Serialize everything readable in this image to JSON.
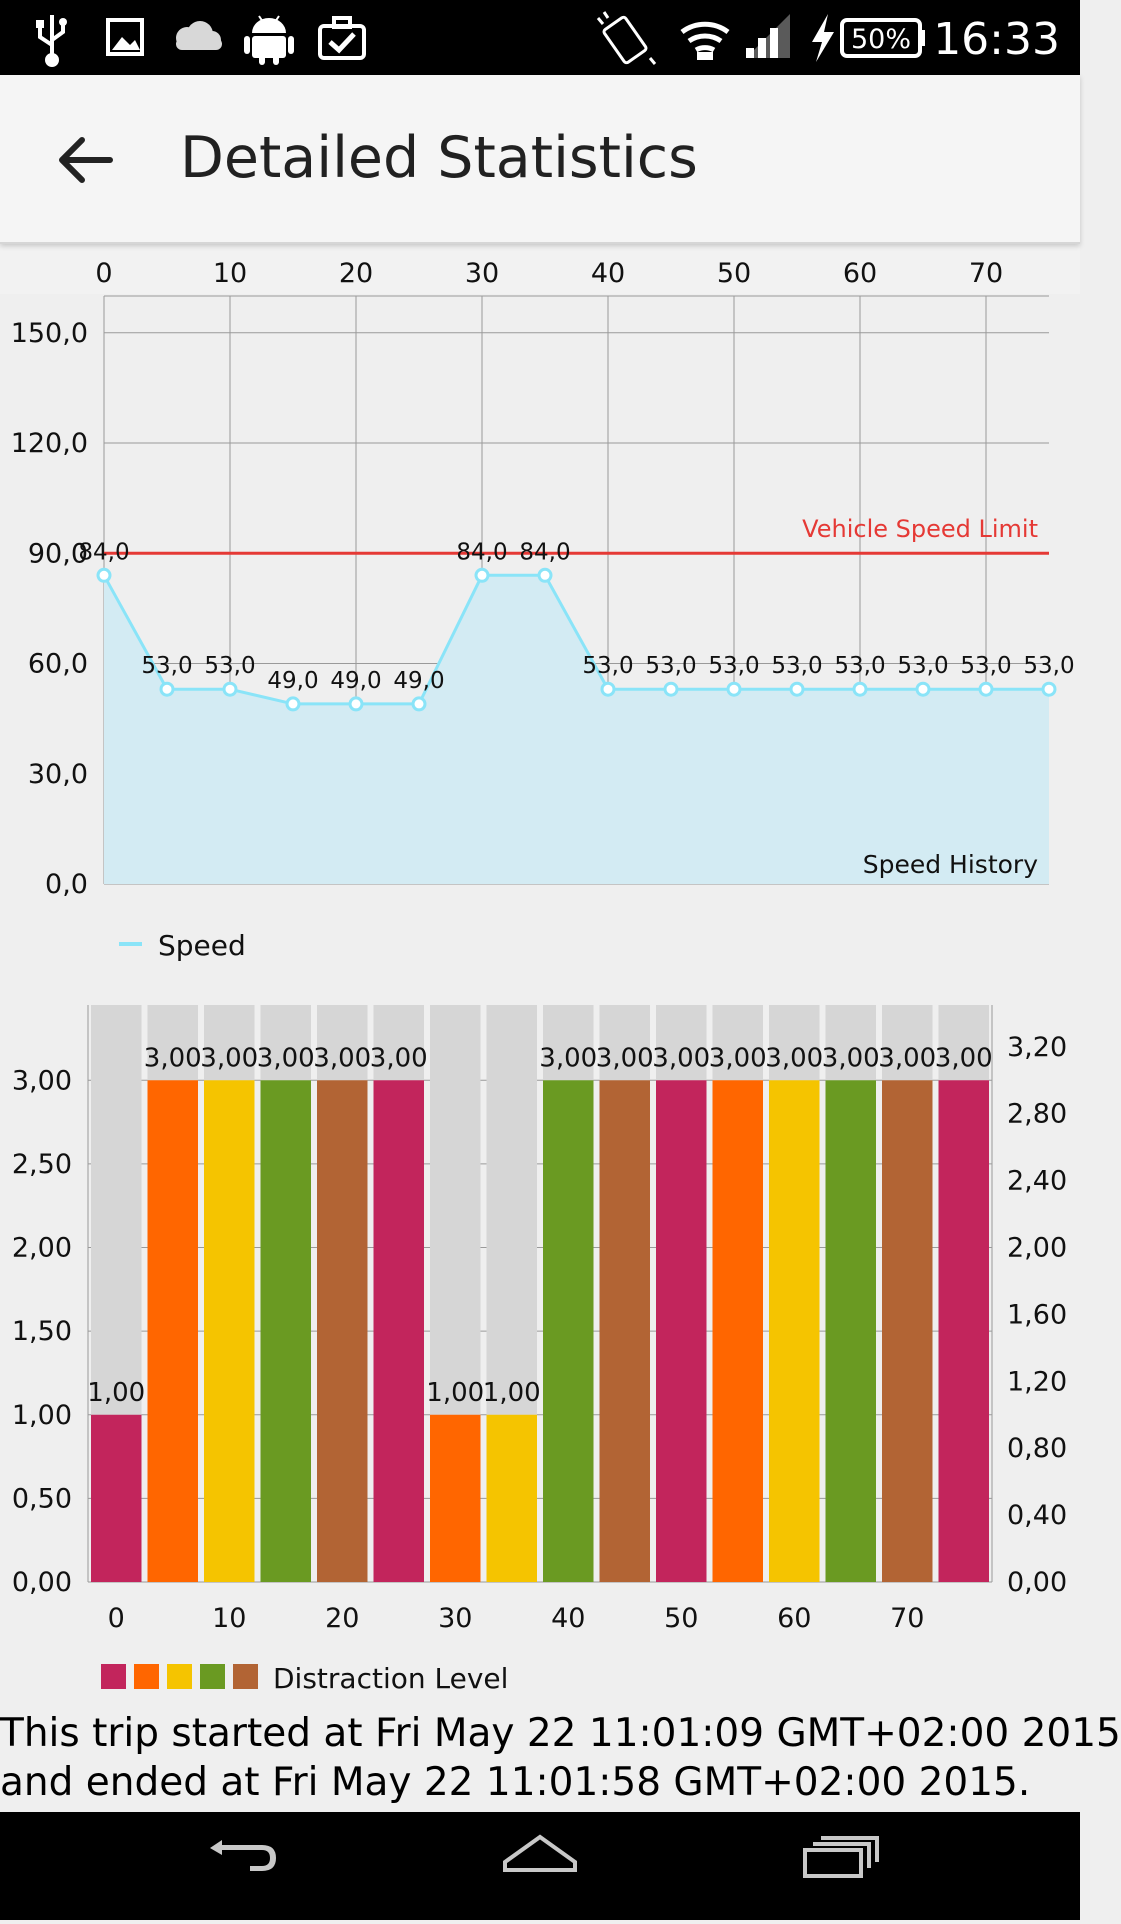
{
  "status_bar": {
    "battery": "50%",
    "time": "16:33",
    "icons": [
      "usb-icon",
      "image-icon",
      "cloud-icon",
      "android-icon",
      "briefcase-check-icon",
      "vibrate-icon",
      "wifi-icon",
      "signal-icon",
      "charging-icon",
      "battery-icon"
    ]
  },
  "app_bar": {
    "title": "Detailed Statistics",
    "back_icon": "arrow-back-icon"
  },
  "chart_data": [
    {
      "type": "line",
      "title": "Speed History",
      "x": [
        0,
        5,
        10,
        15,
        20,
        25,
        30,
        35,
        40,
        45,
        50,
        55,
        60,
        65,
        70,
        75
      ],
      "series": [
        {
          "name": "Speed",
          "values": [
            84,
            53,
            53,
            49,
            49,
            49,
            84,
            84,
            53,
            53,
            53,
            53,
            53,
            53,
            53,
            53
          ],
          "color": "#8ae4f8",
          "fill": "#d3ebf3"
        }
      ],
      "data_labels": [
        "84,0",
        "53,0",
        "53,0",
        "49,0",
        "49,0",
        "49,0",
        "84,0",
        "84,0",
        "53,0",
        "53,0",
        "53,0",
        "53,0",
        "53,0",
        "53,0",
        "53,0",
        "53,0"
      ],
      "x_ticks": [
        "0",
        "10",
        "20",
        "30",
        "40",
        "50",
        "60",
        "70"
      ],
      "x_tick_values": [
        0,
        10,
        20,
        30,
        40,
        50,
        60,
        70
      ],
      "y_ticks": [
        "0,0",
        "30,0",
        "60,0",
        "90,0",
        "120,0",
        "150,0"
      ],
      "y_tick_values": [
        0,
        30,
        60,
        90,
        120,
        150
      ],
      "xlim": [
        0,
        75
      ],
      "ylim": [
        0,
        160
      ],
      "x_axis_position": "top",
      "grid": true,
      "limit_line": {
        "label": "Vehicle Speed Limit",
        "value": 90,
        "color": "#e53935"
      },
      "legend": "bottom-left"
    },
    {
      "type": "bar",
      "categories": [
        "0",
        "5",
        "10",
        "15",
        "20",
        "25",
        "30",
        "35",
        "40",
        "45",
        "50",
        "55",
        "60",
        "65",
        "70",
        "75"
      ],
      "series": [
        {
          "name": "Distraction Level",
          "values": [
            1,
            3,
            3,
            3,
            3,
            3,
            1,
            1,
            3,
            3,
            3,
            3,
            3,
            3,
            3,
            3
          ]
        }
      ],
      "data_labels": [
        "1,00",
        "3,00",
        "3,00",
        "3,00",
        "3,00",
        "3,00",
        "1,00",
        "1,00",
        "3,00",
        "3,00",
        "3,00",
        "3,00",
        "3,00",
        "3,00",
        "3,00",
        "3,00"
      ],
      "bar_colors": [
        "#c2255c",
        "#ff6600",
        "#f5c400",
        "#6a9a22",
        "#b26434",
        "#c2255c",
        "#ff6600",
        "#f5c400",
        "#6a9a22",
        "#b26434",
        "#c2255c",
        "#ff6600",
        "#f5c400",
        "#6a9a22",
        "#b26434",
        "#c2255c"
      ],
      "background_bar_color": "#d6d6d6",
      "x_ticks": [
        "0",
        "10",
        "20",
        "30",
        "40",
        "50",
        "60",
        "70"
      ],
      "y_ticks_left": [
        "0,00",
        "0,50",
        "1,00",
        "1,50",
        "2,00",
        "2,50",
        "3,00"
      ],
      "y_tick_values_left": [
        0,
        0.5,
        1,
        1.5,
        2,
        2.5,
        3
      ],
      "y_ticks_right": [
        "0,00",
        "0,40",
        "0,80",
        "1,20",
        "1,60",
        "2,00",
        "2,40",
        "2,80",
        "3,20"
      ],
      "y_tick_values_right": [
        0,
        0.4,
        0.8,
        1.2,
        1.6,
        2,
        2.4,
        2.8,
        3.2
      ],
      "ylim": [
        0,
        3.45
      ],
      "grid": true,
      "legend": "bottom-left",
      "legend_colors": [
        "#c2255c",
        "#ff6600",
        "#f5c400",
        "#6a9a22",
        "#b26434"
      ]
    }
  ],
  "trip_text": {
    "line1": "This trip started at Fri May 22 11:01:09 GMT+02:00 2015",
    "line2": "and ended at Fri May 22 11:01:58 GMT+02:00 2015."
  },
  "nav_bar": {
    "icons": [
      "back-nav-icon",
      "home-nav-icon",
      "recents-nav-icon"
    ]
  }
}
